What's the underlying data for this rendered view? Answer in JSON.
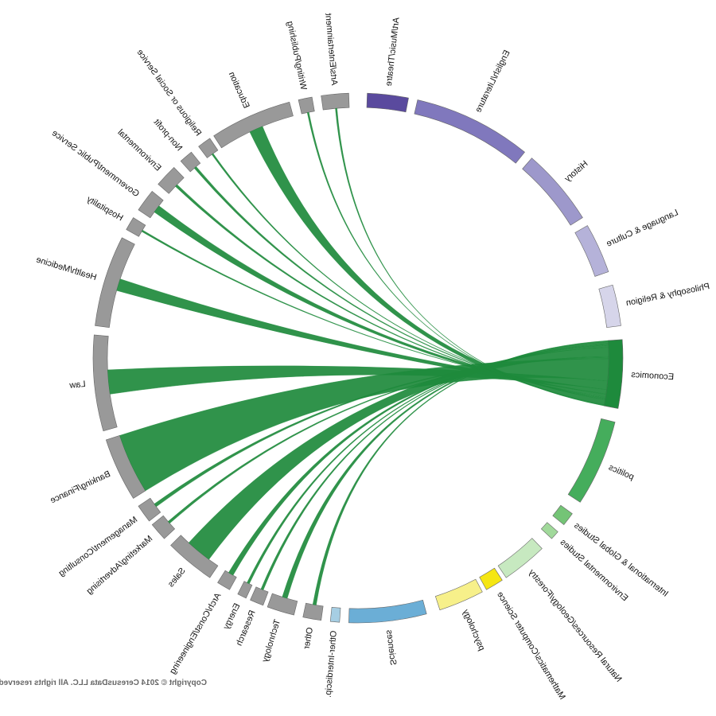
{
  "chart_data": {
    "type": "chord",
    "mirrored": true,
    "hub": "Economics",
    "colors": {
      "career_arc": "#999999",
      "chord": "#1e8a3c",
      "text": "#111111"
    },
    "majors": [
      {
        "name": "Art/Music/Theatre",
        "color": "#5a4a9e"
      },
      {
        "name": "English/Literature",
        "color": "#8078bd"
      },
      {
        "name": "History",
        "color": "#9d98cb"
      },
      {
        "name": "Language & Culture",
        "color": "#b5b2d9"
      },
      {
        "name": "Philosophy & Religion",
        "color": "#d6d5ea"
      },
      {
        "name": "Economics",
        "color": "#1e8a3c"
      },
      {
        "name": "politics",
        "color": "#45ad5c"
      },
      {
        "name": "International & Global Studies",
        "color": "#74c476"
      },
      {
        "name": "Environmental Studies",
        "color": "#a1d99b"
      },
      {
        "name": "Natural Resources/Geology/Forestry",
        "color": "#c7e9c0"
      },
      {
        "name": "Mathematics/Computer Science",
        "color": "#f5e613"
      },
      {
        "name": "psychology",
        "color": "#f7f08a"
      },
      {
        "name": "Sciences",
        "color": "#6baed6"
      },
      {
        "name": "Other-Interdiscip.",
        "color": "#a6cee3"
      }
    ],
    "careers": [
      {
        "name": "Other",
        "value": 2
      },
      {
        "name": "Technology",
        "value": 3
      },
      {
        "name": "Research",
        "value": 1.5
      },
      {
        "name": "Energy",
        "value": 1.5
      },
      {
        "name": "Arch/Const/Engineering",
        "value": 3
      },
      {
        "name": "Sales",
        "value": 15
      },
      {
        "name": "Marketing/Advertising",
        "value": 1.5
      },
      {
        "name": "Management/Consulting",
        "value": 2
      },
      {
        "name": "Banking/Finance",
        "value": 36
      },
      {
        "name": "Law",
        "value": 14
      },
      {
        "name": "Health/Medicine",
        "value": 7
      },
      {
        "name": "Hospitality",
        "value": 1
      },
      {
        "name": "Government/Public Service",
        "value": 4.5
      },
      {
        "name": "Environmental",
        "value": 1.5
      },
      {
        "name": "Non-profit",
        "value": 1.5
      },
      {
        "name": "Religious or Social Service",
        "value": 1
      },
      {
        "name": "Education",
        "value": 8
      },
      {
        "name": "Writing/Publishing",
        "value": 1
      },
      {
        "name": "Arts/Entertainment",
        "value": 1
      }
    ],
    "copyright": "Copyright © 2014 CeresusData LLC.  All rights reserved."
  }
}
